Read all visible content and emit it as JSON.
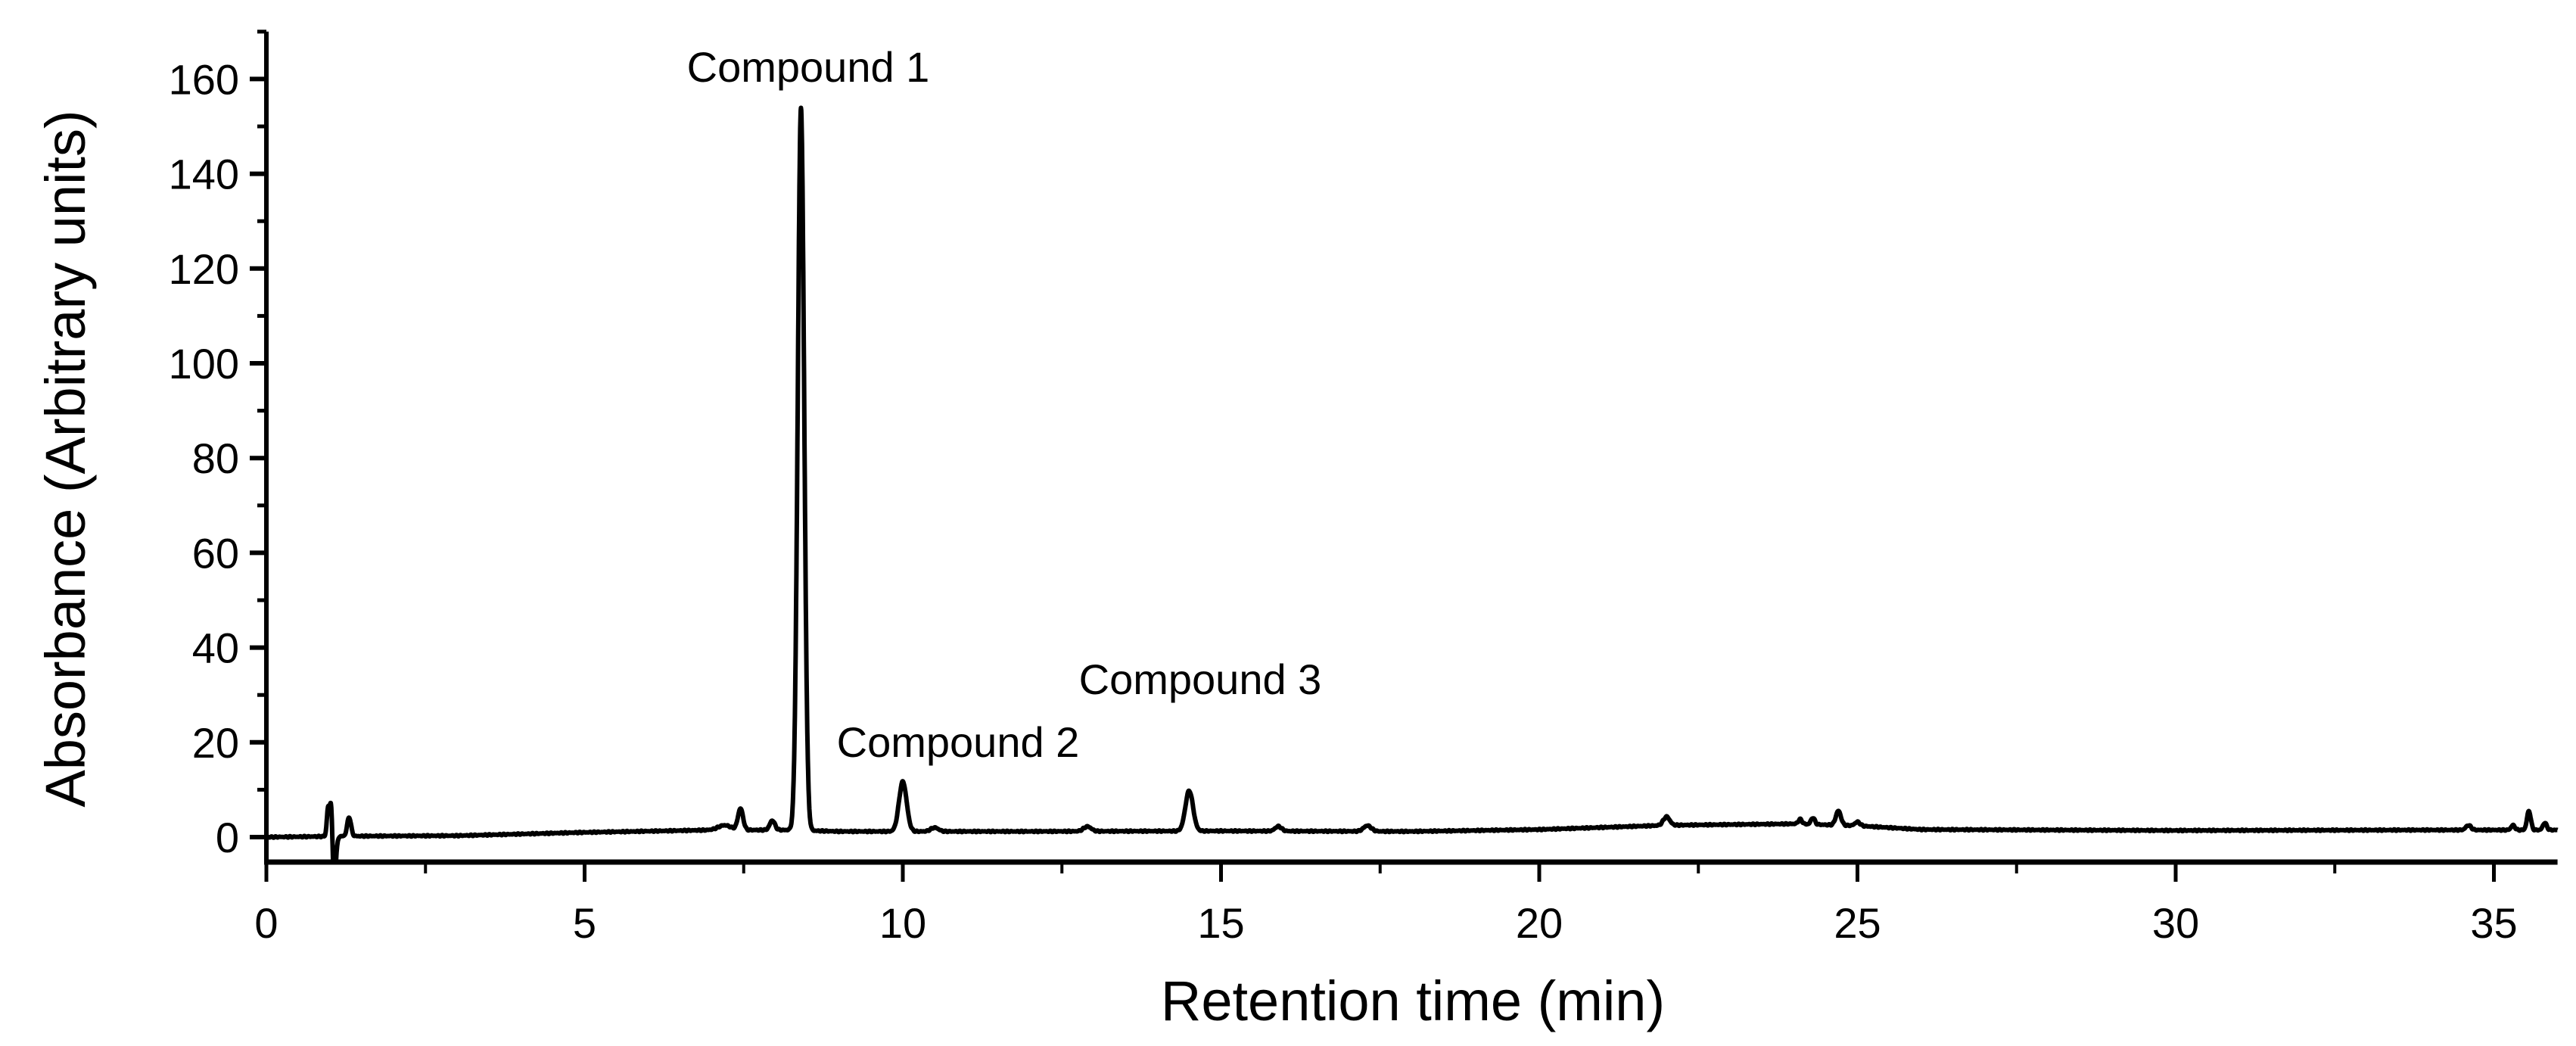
{
  "chart_data": {
    "type": "line",
    "title": "",
    "xlabel": "Retention time (min)",
    "ylabel": "Absorbance (Arbitrary units)",
    "xlim": [
      0,
      36
    ],
    "ylim": [
      -5,
      170
    ],
    "grid": false,
    "legend": null,
    "x_ticks": [
      0,
      5,
      10,
      15,
      20,
      25,
      30,
      35
    ],
    "x_tick_labels": [
      "0",
      "5",
      "10",
      "15",
      "20",
      "25",
      "30",
      "35"
    ],
    "x_minor_ticks": [
      2.5,
      7.5,
      12.5,
      17.5,
      22.5,
      27.5,
      32.5
    ],
    "y_ticks": [
      0,
      20,
      40,
      60,
      80,
      100,
      120,
      140,
      160
    ],
    "y_tick_labels": [
      "0",
      "20",
      "40",
      "60",
      "80",
      "100",
      "120",
      "140",
      "160"
    ],
    "y_minor_ticks": [
      10,
      30,
      50,
      70,
      90,
      110,
      130,
      150,
      170
    ],
    "line_color": "#000000",
    "series": [
      {
        "name": "Chromatogram",
        "baseline": [
          [
            0,
            0
          ],
          [
            1.3,
            0.2
          ],
          [
            3,
            0.3
          ],
          [
            5,
            1.0
          ],
          [
            7,
            1.5
          ],
          [
            8.2,
            1.5
          ],
          [
            9,
            1.2
          ],
          [
            12,
            1.2
          ],
          [
            15,
            1.3
          ],
          [
            18,
            1.2
          ],
          [
            20,
            1.6
          ],
          [
            22,
            2.5
          ],
          [
            24,
            2.8
          ],
          [
            25,
            2.4
          ],
          [
            26,
            1.6
          ],
          [
            30,
            1.4
          ],
          [
            34,
            1.5
          ],
          [
            36,
            1.5
          ]
        ],
        "peaks": [
          {
            "x": 0.97,
            "height": 6,
            "width": 0.02
          },
          {
            "x": 1.02,
            "height": 10,
            "width": 0.02
          },
          {
            "x": 1.06,
            "height": -10,
            "width": 0.03
          },
          {
            "x": 1.3,
            "height": 4,
            "width": 0.03
          },
          {
            "x": 7.2,
            "height": 1,
            "width": 0.1
          },
          {
            "x": 7.45,
            "height": 4.5,
            "width": 0.04
          },
          {
            "x": 7.95,
            "height": 2,
            "width": 0.04
          },
          {
            "x": 8.4,
            "height": 152.5,
            "width": 0.05
          },
          {
            "x": 10.0,
            "height": 10.5,
            "width": 0.06
          },
          {
            "x": 10.5,
            "height": 0.8,
            "width": 0.06
          },
          {
            "x": 12.9,
            "height": 1,
            "width": 0.06
          },
          {
            "x": 14.5,
            "height": 8.5,
            "width": 0.06
          },
          {
            "x": 15.9,
            "height": 1,
            "width": 0.05
          },
          {
            "x": 17.3,
            "height": 1.2,
            "width": 0.06
          },
          {
            "x": 22.0,
            "height": 1.8,
            "width": 0.05
          },
          {
            "x": 24.1,
            "height": 1,
            "width": 0.03
          },
          {
            "x": 24.3,
            "height": 1.4,
            "width": 0.03
          },
          {
            "x": 24.7,
            "height": 3,
            "width": 0.04
          },
          {
            "x": 25.0,
            "height": 0.8,
            "width": 0.04
          },
          {
            "x": 34.6,
            "height": 1,
            "width": 0.04
          },
          {
            "x": 35.3,
            "height": 1,
            "width": 0.03
          },
          {
            "x": 35.55,
            "height": 4,
            "width": 0.03
          },
          {
            "x": 35.8,
            "height": 1.5,
            "width": 0.03
          }
        ]
      }
    ],
    "annotations": [
      {
        "text": "Compound 1",
        "x": 8.4,
        "y": 160,
        "peak_x": 8.4,
        "peak_y": 154
      },
      {
        "text": "Compound 2",
        "x": 10.8,
        "y": 18,
        "peak_x": 10.0,
        "peak_y": 12
      },
      {
        "text": "Compound 3",
        "x": 14.7,
        "y": 32,
        "peak_x": 14.5,
        "peak_y": 10
      }
    ]
  }
}
